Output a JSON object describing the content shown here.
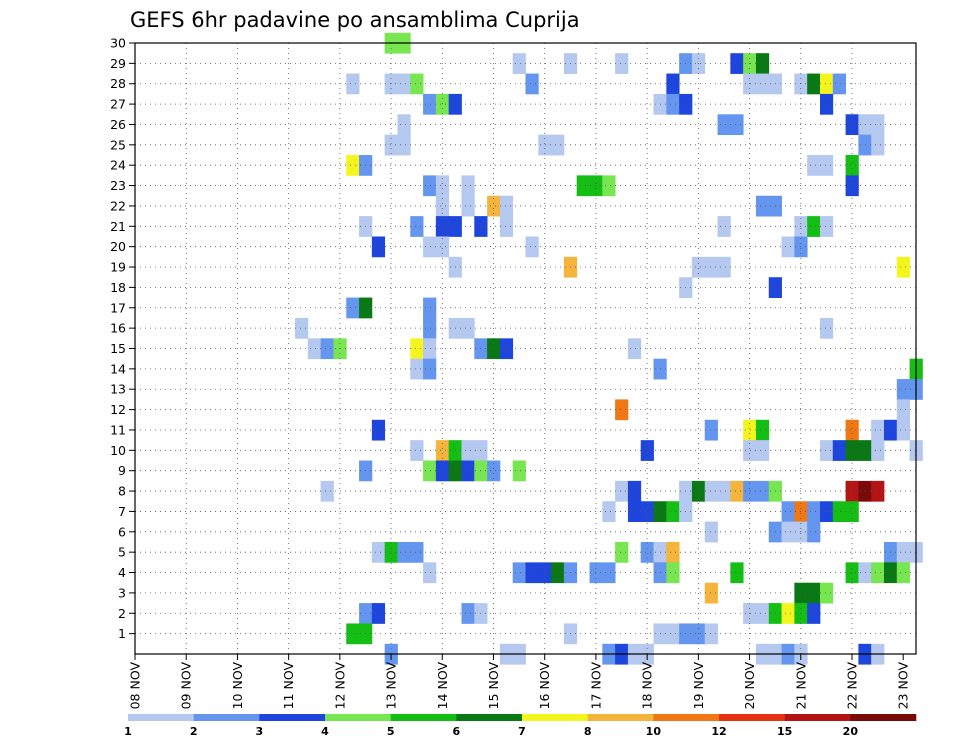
{
  "chart_data": {
    "type": "heatmap",
    "title": "GEFS 6hr padavine po ansamblima Cuprija",
    "xlabel": "",
    "ylabel": "",
    "x_tick_labels": [
      "08 NOV",
      "09 NOV",
      "10 NOV",
      "11 NOV",
      "12 NOV",
      "13 NOV",
      "14 NOV",
      "15 NOV",
      "16 NOV",
      "17 NOV",
      "18 NOV",
      "19 NOV",
      "20 NOV",
      "21 NOV",
      "22 NOV",
      "23 NOV"
    ],
    "y_tick_labels": [
      "1",
      "2",
      "3",
      "4",
      "5",
      "6",
      "7",
      "8",
      "9",
      "10",
      "11",
      "12",
      "13",
      "14",
      "15",
      "16",
      "17",
      "18",
      "19",
      "20",
      "21",
      "22",
      "23",
      "24",
      "25",
      "26",
      "27",
      "28",
      "29",
      "30"
    ],
    "xlim": [
      0,
      61
    ],
    "ylim": [
      0,
      30
    ],
    "grid": true,
    "colorbar": {
      "levels": [
        "1",
        "2",
        "3",
        "4",
        "5",
        "6",
        "7",
        "8",
        "10",
        "12",
        "15",
        "20"
      ],
      "colors": [
        "#b4c8f0",
        "#6496f0",
        "#1e46dc",
        "#78e650",
        "#14be14",
        "#0a7814",
        "#f5f51e",
        "#f5b43c",
        "#f07814",
        "#e63214",
        "#b41414",
        "#780a0a"
      ]
    },
    "cells": [
      [
        20,
        30,
        4
      ],
      [
        21,
        30,
        4
      ],
      [
        30,
        29,
        1
      ],
      [
        34,
        29,
        1
      ],
      [
        38,
        29,
        1
      ],
      [
        43,
        29,
        2
      ],
      [
        44,
        29,
        1
      ],
      [
        47,
        29,
        3
      ],
      [
        48,
        29,
        4
      ],
      [
        49,
        29,
        6
      ],
      [
        17,
        28,
        1
      ],
      [
        20,
        28,
        1
      ],
      [
        21,
        28,
        1
      ],
      [
        22,
        28,
        4
      ],
      [
        31,
        28,
        2
      ],
      [
        42,
        28,
        3
      ],
      [
        48,
        28,
        1
      ],
      [
        49,
        28,
        1
      ],
      [
        50,
        28,
        1
      ],
      [
        52,
        28,
        1
      ],
      [
        53,
        28,
        6
      ],
      [
        54,
        28,
        7
      ],
      [
        55,
        28,
        2
      ],
      [
        23,
        27,
        2
      ],
      [
        24,
        27,
        4
      ],
      [
        25,
        27,
        3
      ],
      [
        41,
        27,
        1
      ],
      [
        42,
        27,
        2
      ],
      [
        43,
        27,
        3
      ],
      [
        54,
        27,
        3
      ],
      [
        21,
        26,
        1
      ],
      [
        46,
        26,
        2
      ],
      [
        47,
        26,
        2
      ],
      [
        56,
        26,
        3
      ],
      [
        57,
        26,
        1
      ],
      [
        58,
        26,
        1
      ],
      [
        20,
        25,
        1
      ],
      [
        21,
        25,
        1
      ],
      [
        32,
        25,
        1
      ],
      [
        33,
        25,
        1
      ],
      [
        57,
        25,
        2
      ],
      [
        58,
        25,
        1
      ],
      [
        17,
        24,
        7
      ],
      [
        18,
        24,
        2
      ],
      [
        53,
        24,
        1
      ],
      [
        54,
        24,
        1
      ],
      [
        56,
        24,
        5
      ],
      [
        23,
        23,
        2
      ],
      [
        24,
        23,
        1
      ],
      [
        26,
        23,
        1
      ],
      [
        35,
        23,
        5
      ],
      [
        36,
        23,
        5
      ],
      [
        37,
        23,
        4
      ],
      [
        56,
        23,
        3
      ],
      [
        24,
        22,
        1
      ],
      [
        26,
        22,
        1
      ],
      [
        28,
        22,
        8
      ],
      [
        29,
        22,
        1
      ],
      [
        49,
        22,
        2
      ],
      [
        50,
        22,
        2
      ],
      [
        18,
        21,
        1
      ],
      [
        22,
        21,
        2
      ],
      [
        24,
        21,
        3
      ],
      [
        25,
        21,
        3
      ],
      [
        27,
        21,
        3
      ],
      [
        29,
        21,
        1
      ],
      [
        46,
        21,
        1
      ],
      [
        52,
        21,
        1
      ],
      [
        53,
        21,
        5
      ],
      [
        54,
        21,
        1
      ],
      [
        19,
        20,
        3
      ],
      [
        23,
        20,
        1
      ],
      [
        24,
        20,
        1
      ],
      [
        31,
        20,
        1
      ],
      [
        51,
        20,
        1
      ],
      [
        52,
        20,
        2
      ],
      [
        25,
        19,
        1
      ],
      [
        34,
        19,
        8
      ],
      [
        44,
        19,
        1
      ],
      [
        45,
        19,
        1
      ],
      [
        46,
        19,
        1
      ],
      [
        60,
        19,
        7
      ],
      [
        43,
        18,
        1
      ],
      [
        50,
        18,
        3
      ],
      [
        17,
        17,
        2
      ],
      [
        18,
        17,
        6
      ],
      [
        23,
        17,
        2
      ],
      [
        13,
        16,
        1
      ],
      [
        23,
        16,
        2
      ],
      [
        25,
        16,
        1
      ],
      [
        26,
        16,
        1
      ],
      [
        54,
        16,
        1
      ],
      [
        14,
        15,
        1
      ],
      [
        15,
        15,
        2
      ],
      [
        16,
        15,
        4
      ],
      [
        22,
        15,
        7
      ],
      [
        23,
        15,
        1
      ],
      [
        27,
        15,
        2
      ],
      [
        28,
        15,
        6
      ],
      [
        29,
        15,
        3
      ],
      [
        39,
        15,
        1
      ],
      [
        22,
        14,
        1
      ],
      [
        23,
        14,
        2
      ],
      [
        41,
        14,
        2
      ],
      [
        61,
        14,
        5
      ],
      [
        60,
        13,
        2
      ],
      [
        61,
        13,
        2
      ],
      [
        38,
        12,
        9
      ],
      [
        60,
        12,
        1
      ],
      [
        19,
        11,
        3
      ],
      [
        45,
        11,
        2
      ],
      [
        48,
        11,
        7
      ],
      [
        49,
        11,
        5
      ],
      [
        56,
        11,
        9
      ],
      [
        58,
        11,
        1
      ],
      [
        59,
        11,
        3
      ],
      [
        60,
        11,
        1
      ],
      [
        22,
        10,
        1
      ],
      [
        24,
        10,
        8
      ],
      [
        25,
        10,
        5
      ],
      [
        26,
        10,
        1
      ],
      [
        27,
        10,
        1
      ],
      [
        40,
        10,
        3
      ],
      [
        48,
        10,
        1
      ],
      [
        49,
        10,
        1
      ],
      [
        54,
        10,
        1
      ],
      [
        55,
        10,
        3
      ],
      [
        56,
        10,
        6
      ],
      [
        57,
        10,
        6
      ],
      [
        58,
        10,
        1
      ],
      [
        61,
        10,
        1
      ],
      [
        18,
        9,
        2
      ],
      [
        23,
        9,
        4
      ],
      [
        24,
        9,
        3
      ],
      [
        25,
        9,
        6
      ],
      [
        26,
        9,
        3
      ],
      [
        27,
        9,
        4
      ],
      [
        28,
        9,
        2
      ],
      [
        30,
        9,
        4
      ],
      [
        15,
        8,
        1
      ],
      [
        38,
        8,
        1
      ],
      [
        39,
        8,
        3
      ],
      [
        43,
        8,
        1
      ],
      [
        44,
        8,
        6
      ],
      [
        45,
        8,
        1
      ],
      [
        46,
        8,
        1
      ],
      [
        47,
        8,
        8
      ],
      [
        48,
        8,
        2
      ],
      [
        49,
        8,
        2
      ],
      [
        50,
        8,
        4
      ],
      [
        56,
        8,
        11
      ],
      [
        57,
        8,
        12
      ],
      [
        58,
        8,
        11
      ],
      [
        37,
        7,
        1
      ],
      [
        39,
        7,
        3
      ],
      [
        40,
        7,
        3
      ],
      [
        41,
        7,
        6
      ],
      [
        42,
        7,
        5
      ],
      [
        43,
        7,
        1
      ],
      [
        51,
        7,
        2
      ],
      [
        52,
        7,
        9
      ],
      [
        53,
        7,
        2
      ],
      [
        54,
        7,
        3
      ],
      [
        55,
        7,
        5
      ],
      [
        56,
        7,
        5
      ],
      [
        45,
        6,
        1
      ],
      [
        50,
        6,
        2
      ],
      [
        51,
        6,
        1
      ],
      [
        52,
        6,
        1
      ],
      [
        53,
        6,
        2
      ],
      [
        19,
        5,
        1
      ],
      [
        20,
        5,
        5
      ],
      [
        21,
        5,
        2
      ],
      [
        22,
        5,
        2
      ],
      [
        38,
        5,
        4
      ],
      [
        40,
        5,
        2
      ],
      [
        41,
        5,
        1
      ],
      [
        42,
        5,
        8
      ],
      [
        59,
        5,
        2
      ],
      [
        60,
        5,
        1
      ],
      [
        61,
        5,
        1
      ],
      [
        23,
        4,
        1
      ],
      [
        30,
        4,
        2
      ],
      [
        31,
        4,
        3
      ],
      [
        32,
        4,
        3
      ],
      [
        33,
        4,
        6
      ],
      [
        34,
        4,
        2
      ],
      [
        36,
        4,
        2
      ],
      [
        37,
        4,
        2
      ],
      [
        41,
        4,
        2
      ],
      [
        42,
        4,
        4
      ],
      [
        47,
        4,
        5
      ],
      [
        56,
        4,
        5
      ],
      [
        57,
        4,
        1
      ],
      [
        58,
        4,
        4
      ],
      [
        59,
        4,
        6
      ],
      [
        60,
        4,
        4
      ],
      [
        45,
        3,
        8
      ],
      [
        52,
        3,
        6
      ],
      [
        53,
        3,
        6
      ],
      [
        54,
        3,
        4
      ],
      [
        18,
        2,
        2
      ],
      [
        19,
        2,
        3
      ],
      [
        26,
        2,
        2
      ],
      [
        27,
        2,
        1
      ],
      [
        48,
        2,
        1
      ],
      [
        49,
        2,
        1
      ],
      [
        50,
        2,
        5
      ],
      [
        51,
        2,
        7
      ],
      [
        52,
        2,
        5
      ],
      [
        53,
        2,
        3
      ],
      [
        17,
        1,
        5
      ],
      [
        18,
        1,
        5
      ],
      [
        34,
        1,
        1
      ],
      [
        41,
        1,
        1
      ],
      [
        42,
        1,
        1
      ],
      [
        43,
        1,
        2
      ],
      [
        44,
        1,
        2
      ],
      [
        45,
        1,
        1
      ],
      [
        20,
        0,
        2
      ],
      [
        29,
        0,
        1
      ],
      [
        30,
        0,
        1
      ],
      [
        37,
        0,
        2
      ],
      [
        38,
        0,
        3
      ],
      [
        39,
        0,
        1
      ],
      [
        40,
        0,
        1
      ],
      [
        49,
        0,
        1
      ],
      [
        50,
        0,
        1
      ],
      [
        51,
        0,
        2
      ],
      [
        52,
        0,
        1
      ],
      [
        57,
        0,
        3
      ],
      [
        58,
        0,
        1
      ]
    ]
  }
}
